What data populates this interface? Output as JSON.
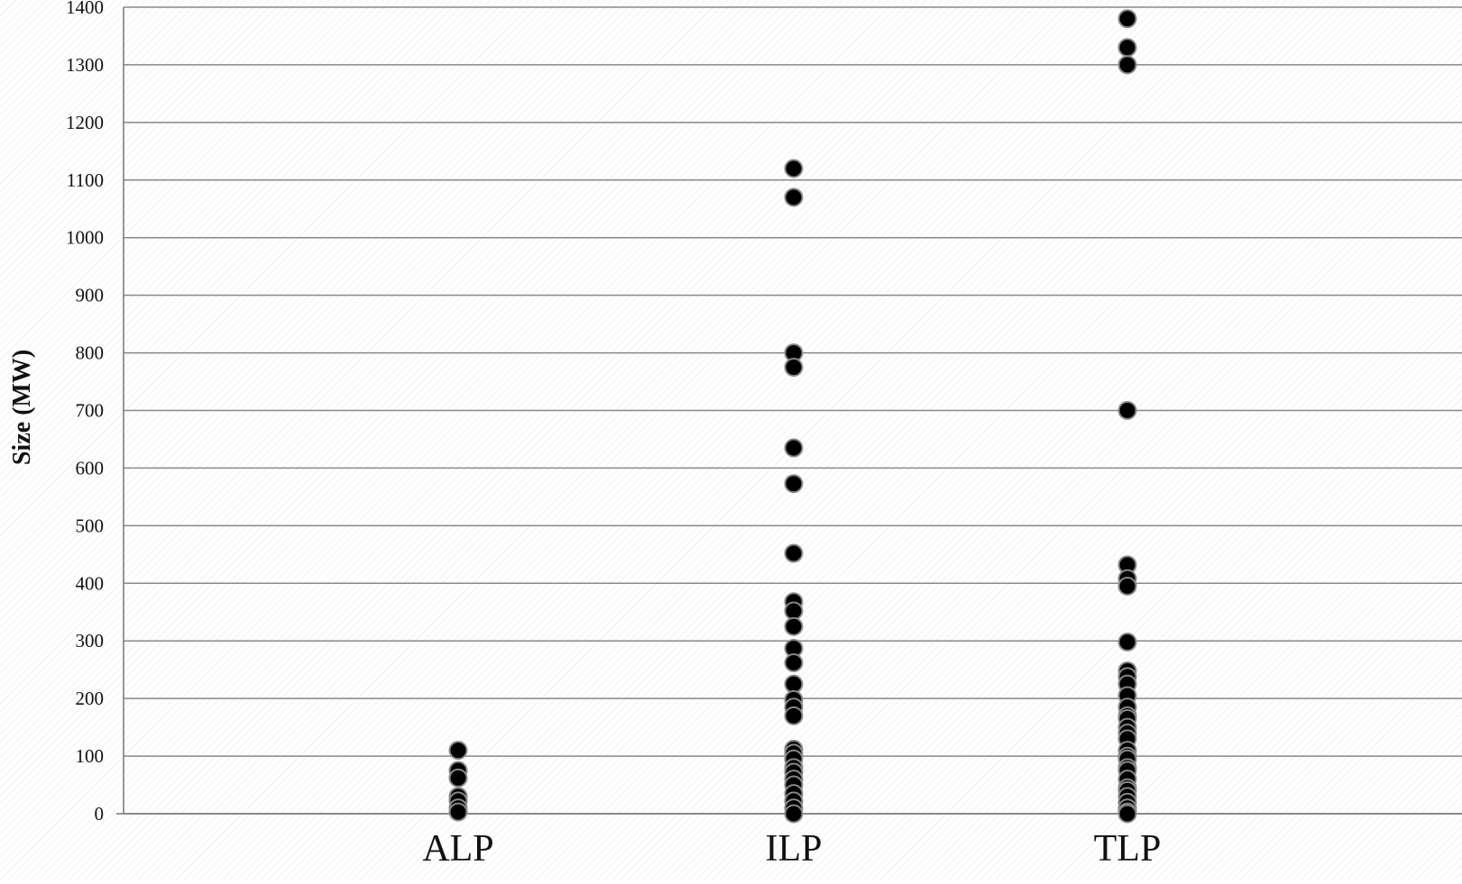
{
  "chart_data": {
    "type": "scatter",
    "title": "",
    "xlabel": "",
    "ylabel": "Size (MW)",
    "categories": [
      "ALP",
      "ILP",
      "TLP"
    ],
    "ylim": [
      0,
      1400
    ],
    "yticks": [
      0,
      100,
      200,
      300,
      400,
      500,
      600,
      700,
      800,
      900,
      1000,
      1100,
      1200,
      1300,
      1400
    ],
    "grid": true,
    "legend": "none",
    "series": [
      {
        "category": "ALP",
        "values": [
          110,
          75,
          62,
          30,
          22,
          10,
          3
        ]
      },
      {
        "category": "ILP",
        "values": [
          1120,
          1070,
          800,
          775,
          635,
          573,
          452,
          368,
          352,
          325,
          287,
          262,
          225,
          198,
          185,
          170,
          112,
          105,
          95,
          80,
          72,
          60,
          50,
          35,
          22,
          10,
          0
        ]
      },
      {
        "category": "TLP",
        "values": [
          1380,
          1330,
          1300,
          700,
          432,
          408,
          395,
          298,
          248,
          238,
          225,
          205,
          185,
          170,
          165,
          150,
          140,
          130,
          110,
          100,
          95,
          80,
          75,
          60,
          45,
          40,
          30,
          20,
          10,
          3,
          0
        ]
      }
    ],
    "colors": {
      "marker_fill": "#000000",
      "marker_stroke": "#888888",
      "grid": "#888888",
      "axis": "#777777"
    }
  }
}
